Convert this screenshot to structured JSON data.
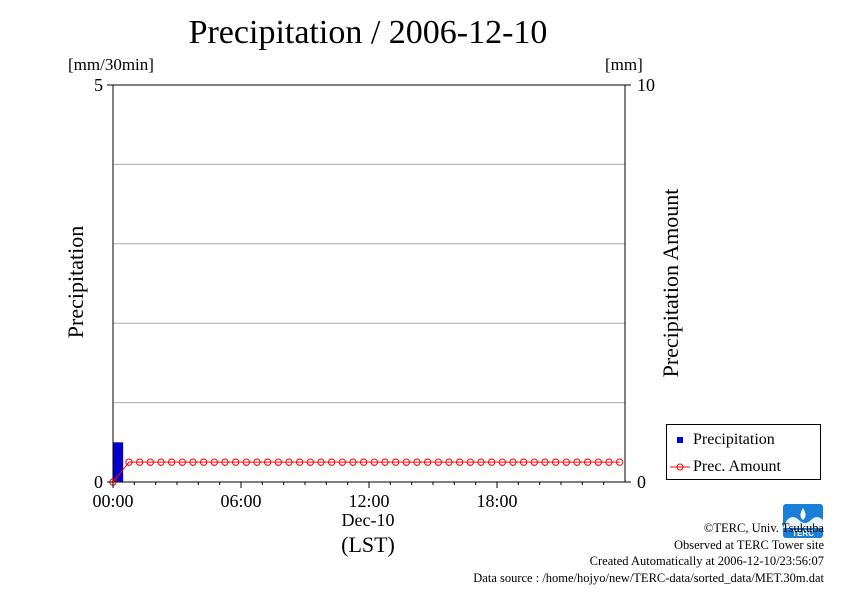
{
  "title": "Precipitation / 2006-12-10",
  "left_unit": "[mm/30min]",
  "right_unit": "[mm]",
  "left_axis_label": "Precipitation",
  "right_axis_label": "Precipitation Amount",
  "date_label": "Dec-10",
  "timezone_label": "(LST)",
  "legend": {
    "precip_label": "Precipitation",
    "amount_label": "Prec. Amount"
  },
  "credits": {
    "copyright": "©TERC, Univ. Tsukuba",
    "observed": "Observed at TERC Tower site",
    "created": "Created Automatically at 2006-12-10/23:56:07",
    "source": "Data source : /home/hojyo/new/TERC-data/sorted_data/MET.30m.dat"
  },
  "logo_text": "TERC",
  "colors": {
    "bar": "#0000cc",
    "line": "#ff0000",
    "grid": "#aaaaaa",
    "logo": "#1a7fd6"
  },
  "chart_data": {
    "type": "bar",
    "x_unit": "half-hour of day",
    "x_ticks": [
      "00:00",
      "06:00",
      "12:00",
      "18:00"
    ],
    "x_tick_hours": [
      0,
      6,
      12,
      18
    ],
    "xlim_hours": [
      0,
      24
    ],
    "left_ylim": [
      0,
      5
    ],
    "left_yticks": [
      0,
      5
    ],
    "right_ylim": [
      0,
      10
    ],
    "right_yticks": [
      0,
      10
    ],
    "grid": true,
    "legend_position": "bottom-right",
    "series": [
      {
        "name": "Precipitation",
        "kind": "bar",
        "axis": "left",
        "values": [
          0.5,
          0,
          0,
          0,
          0,
          0,
          0,
          0,
          0,
          0,
          0,
          0,
          0,
          0,
          0,
          0,
          0,
          0,
          0,
          0,
          0,
          0,
          0,
          0,
          0,
          0,
          0,
          0,
          0,
          0,
          0,
          0,
          0,
          0,
          0,
          0,
          0,
          0,
          0,
          0,
          0,
          0,
          0,
          0,
          0,
          0,
          0,
          0
        ]
      },
      {
        "name": "Prec. Amount",
        "kind": "line",
        "axis": "right",
        "values": [
          0,
          0.5,
          0.5,
          0.5,
          0.5,
          0.5,
          0.5,
          0.5,
          0.5,
          0.5,
          0.5,
          0.5,
          0.5,
          0.5,
          0.5,
          0.5,
          0.5,
          0.5,
          0.5,
          0.5,
          0.5,
          0.5,
          0.5,
          0.5,
          0.5,
          0.5,
          0.5,
          0.5,
          0.5,
          0.5,
          0.5,
          0.5,
          0.5,
          0.5,
          0.5,
          0.5,
          0.5,
          0.5,
          0.5,
          0.5,
          0.5,
          0.5,
          0.5,
          0.5,
          0.5,
          0.5,
          0.5,
          0.5
        ]
      }
    ]
  }
}
